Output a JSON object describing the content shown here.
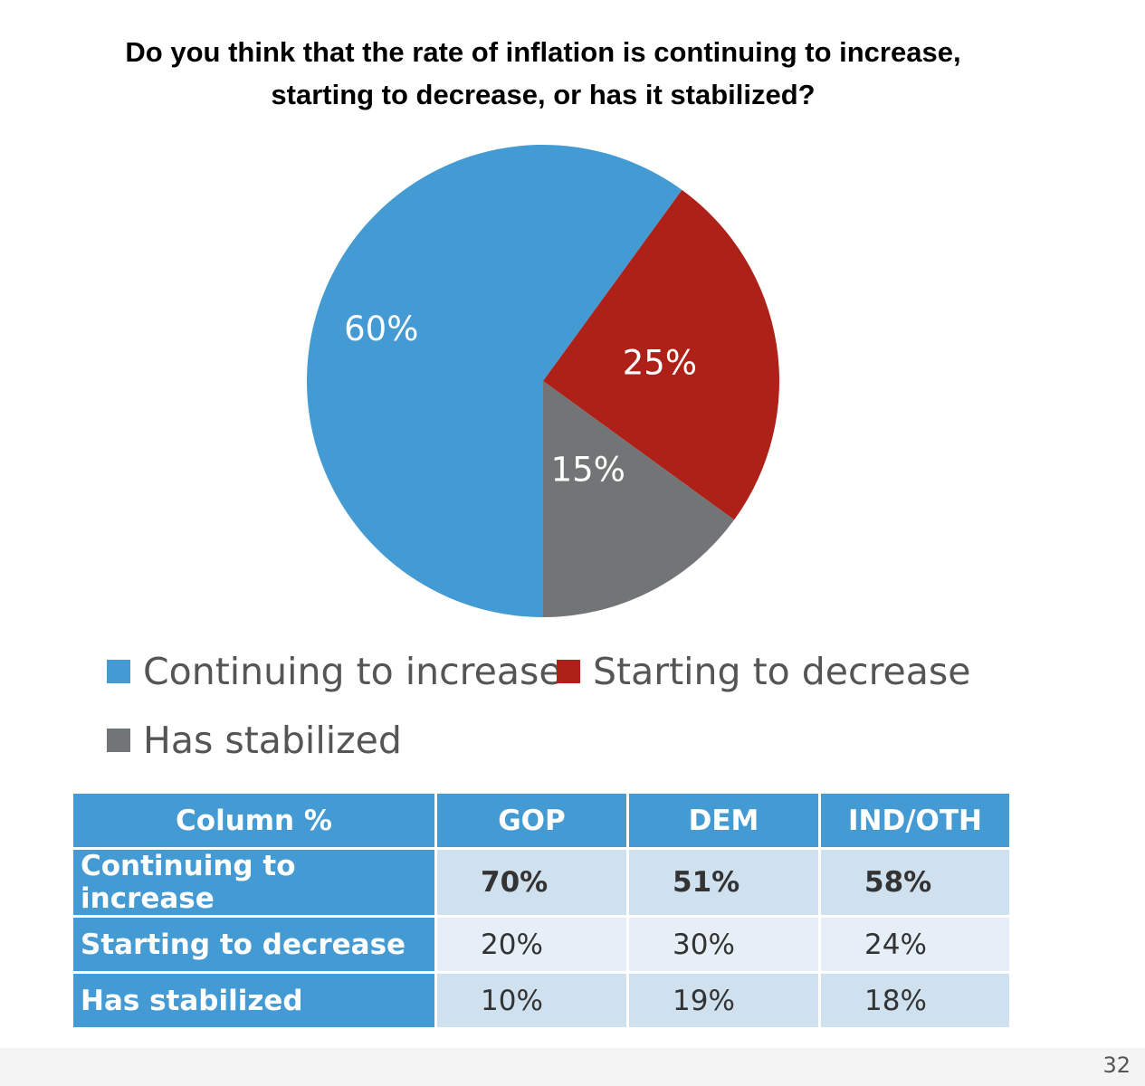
{
  "chart_data": {
    "type": "pie",
    "title": "Do you think that the rate of inflation is continuing to increase, starting to decrease, or has it stabilized?",
    "slices": [
      {
        "label": "Continuing to increase",
        "value": 60,
        "display": "60%",
        "color": "#449bd3"
      },
      {
        "label": "Starting to decrease",
        "value": 25,
        "display": "25%",
        "color": "#ad2118"
      },
      {
        "label": "Has stabilized",
        "value": 15,
        "display": "15%",
        "color": "#727576"
      }
    ],
    "legend_position": "bottom"
  },
  "table": {
    "headers": [
      "Column %",
      "GOP",
      "DEM",
      "IND/OTH"
    ],
    "rows": [
      {
        "label": "Continuing to increase",
        "values": [
          "70%",
          "51%",
          "58%"
        ]
      },
      {
        "label": "Starting to decrease",
        "values": [
          "20%",
          "30%",
          "24%"
        ]
      },
      {
        "label": "Has stabilized",
        "values": [
          "10%",
          "19%",
          "18%"
        ]
      }
    ]
  },
  "page_number": "32"
}
